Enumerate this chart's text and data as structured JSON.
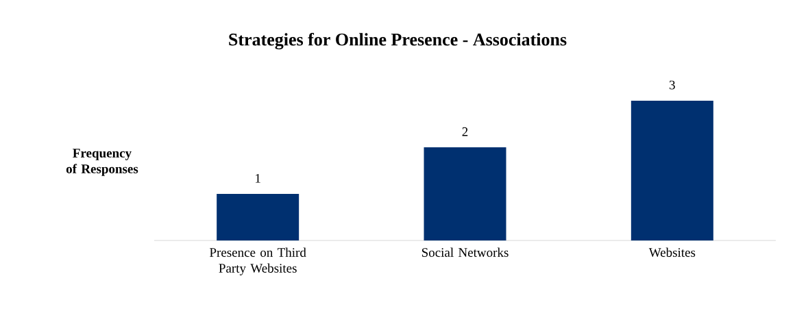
{
  "chart_data": {
    "type": "bar",
    "title": "Strategies for Online Presence - Associations",
    "ylabel": "Frequency of Responses",
    "categories": [
      "Presence on Third Party Websites",
      "Social Networks",
      "Websites"
    ],
    "values": [
      1,
      2,
      3
    ],
    "color": "#003070",
    "data_labels": true
  }
}
